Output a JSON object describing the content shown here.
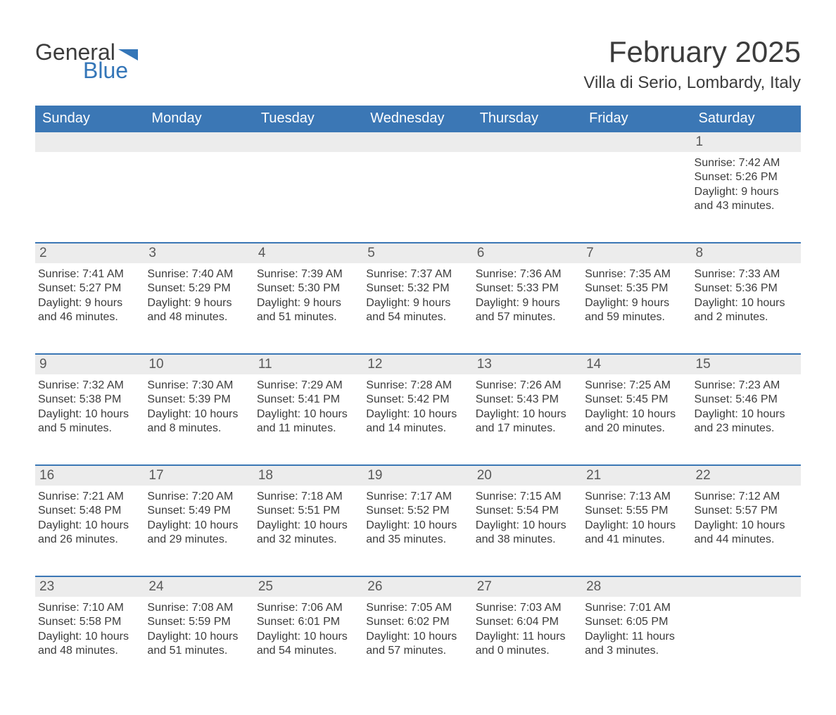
{
  "logo": {
    "general": "General",
    "blue": "Blue"
  },
  "title": "February 2025",
  "location": "Villa di Serio, Lombardy, Italy",
  "colors": {
    "header_bg": "#3b77b5",
    "header_text": "#ffffff",
    "strip_bg": "#ececec",
    "daynum_text": "#595959",
    "body_text": "#3c3c3c",
    "accent": "#3476b8",
    "page_bg": "#ffffff"
  },
  "dayNames": [
    "Sunday",
    "Monday",
    "Tuesday",
    "Wednesday",
    "Thursday",
    "Friday",
    "Saturday"
  ],
  "weeks": [
    {
      "days": [
        {
          "num": "",
          "sunrise": "",
          "sunset": "",
          "daylight": ""
        },
        {
          "num": "",
          "sunrise": "",
          "sunset": "",
          "daylight": ""
        },
        {
          "num": "",
          "sunrise": "",
          "sunset": "",
          "daylight": ""
        },
        {
          "num": "",
          "sunrise": "",
          "sunset": "",
          "daylight": ""
        },
        {
          "num": "",
          "sunrise": "",
          "sunset": "",
          "daylight": ""
        },
        {
          "num": "",
          "sunrise": "",
          "sunset": "",
          "daylight": ""
        },
        {
          "num": "1",
          "sunrise": "Sunrise: 7:42 AM",
          "sunset": "Sunset: 5:26 PM",
          "daylight": "Daylight: 9 hours and 43 minutes."
        }
      ]
    },
    {
      "days": [
        {
          "num": "2",
          "sunrise": "Sunrise: 7:41 AM",
          "sunset": "Sunset: 5:27 PM",
          "daylight": "Daylight: 9 hours and 46 minutes."
        },
        {
          "num": "3",
          "sunrise": "Sunrise: 7:40 AM",
          "sunset": "Sunset: 5:29 PM",
          "daylight": "Daylight: 9 hours and 48 minutes."
        },
        {
          "num": "4",
          "sunrise": "Sunrise: 7:39 AM",
          "sunset": "Sunset: 5:30 PM",
          "daylight": "Daylight: 9 hours and 51 minutes."
        },
        {
          "num": "5",
          "sunrise": "Sunrise: 7:37 AM",
          "sunset": "Sunset: 5:32 PM",
          "daylight": "Daylight: 9 hours and 54 minutes."
        },
        {
          "num": "6",
          "sunrise": "Sunrise: 7:36 AM",
          "sunset": "Sunset: 5:33 PM",
          "daylight": "Daylight: 9 hours and 57 minutes."
        },
        {
          "num": "7",
          "sunrise": "Sunrise: 7:35 AM",
          "sunset": "Sunset: 5:35 PM",
          "daylight": "Daylight: 9 hours and 59 minutes."
        },
        {
          "num": "8",
          "sunrise": "Sunrise: 7:33 AM",
          "sunset": "Sunset: 5:36 PM",
          "daylight": "Daylight: 10 hours and 2 minutes."
        }
      ]
    },
    {
      "days": [
        {
          "num": "9",
          "sunrise": "Sunrise: 7:32 AM",
          "sunset": "Sunset: 5:38 PM",
          "daylight": "Daylight: 10 hours and 5 minutes."
        },
        {
          "num": "10",
          "sunrise": "Sunrise: 7:30 AM",
          "sunset": "Sunset: 5:39 PM",
          "daylight": "Daylight: 10 hours and 8 minutes."
        },
        {
          "num": "11",
          "sunrise": "Sunrise: 7:29 AM",
          "sunset": "Sunset: 5:41 PM",
          "daylight": "Daylight: 10 hours and 11 minutes."
        },
        {
          "num": "12",
          "sunrise": "Sunrise: 7:28 AM",
          "sunset": "Sunset: 5:42 PM",
          "daylight": "Daylight: 10 hours and 14 minutes."
        },
        {
          "num": "13",
          "sunrise": "Sunrise: 7:26 AM",
          "sunset": "Sunset: 5:43 PM",
          "daylight": "Daylight: 10 hours and 17 minutes."
        },
        {
          "num": "14",
          "sunrise": "Sunrise: 7:25 AM",
          "sunset": "Sunset: 5:45 PM",
          "daylight": "Daylight: 10 hours and 20 minutes."
        },
        {
          "num": "15",
          "sunrise": "Sunrise: 7:23 AM",
          "sunset": "Sunset: 5:46 PM",
          "daylight": "Daylight: 10 hours and 23 minutes."
        }
      ]
    },
    {
      "days": [
        {
          "num": "16",
          "sunrise": "Sunrise: 7:21 AM",
          "sunset": "Sunset: 5:48 PM",
          "daylight": "Daylight: 10 hours and 26 minutes."
        },
        {
          "num": "17",
          "sunrise": "Sunrise: 7:20 AM",
          "sunset": "Sunset: 5:49 PM",
          "daylight": "Daylight: 10 hours and 29 minutes."
        },
        {
          "num": "18",
          "sunrise": "Sunrise: 7:18 AM",
          "sunset": "Sunset: 5:51 PM",
          "daylight": "Daylight: 10 hours and 32 minutes."
        },
        {
          "num": "19",
          "sunrise": "Sunrise: 7:17 AM",
          "sunset": "Sunset: 5:52 PM",
          "daylight": "Daylight: 10 hours and 35 minutes."
        },
        {
          "num": "20",
          "sunrise": "Sunrise: 7:15 AM",
          "sunset": "Sunset: 5:54 PM",
          "daylight": "Daylight: 10 hours and 38 minutes."
        },
        {
          "num": "21",
          "sunrise": "Sunrise: 7:13 AM",
          "sunset": "Sunset: 5:55 PM",
          "daylight": "Daylight: 10 hours and 41 minutes."
        },
        {
          "num": "22",
          "sunrise": "Sunrise: 7:12 AM",
          "sunset": "Sunset: 5:57 PM",
          "daylight": "Daylight: 10 hours and 44 minutes."
        }
      ]
    },
    {
      "days": [
        {
          "num": "23",
          "sunrise": "Sunrise: 7:10 AM",
          "sunset": "Sunset: 5:58 PM",
          "daylight": "Daylight: 10 hours and 48 minutes."
        },
        {
          "num": "24",
          "sunrise": "Sunrise: 7:08 AM",
          "sunset": "Sunset: 5:59 PM",
          "daylight": "Daylight: 10 hours and 51 minutes."
        },
        {
          "num": "25",
          "sunrise": "Sunrise: 7:06 AM",
          "sunset": "Sunset: 6:01 PM",
          "daylight": "Daylight: 10 hours and 54 minutes."
        },
        {
          "num": "26",
          "sunrise": "Sunrise: 7:05 AM",
          "sunset": "Sunset: 6:02 PM",
          "daylight": "Daylight: 10 hours and 57 minutes."
        },
        {
          "num": "27",
          "sunrise": "Sunrise: 7:03 AM",
          "sunset": "Sunset: 6:04 PM",
          "daylight": "Daylight: 11 hours and 0 minutes."
        },
        {
          "num": "28",
          "sunrise": "Sunrise: 7:01 AM",
          "sunset": "Sunset: 6:05 PM",
          "daylight": "Daylight: 11 hours and 3 minutes."
        },
        {
          "num": "",
          "sunrise": "",
          "sunset": "",
          "daylight": ""
        }
      ]
    }
  ]
}
